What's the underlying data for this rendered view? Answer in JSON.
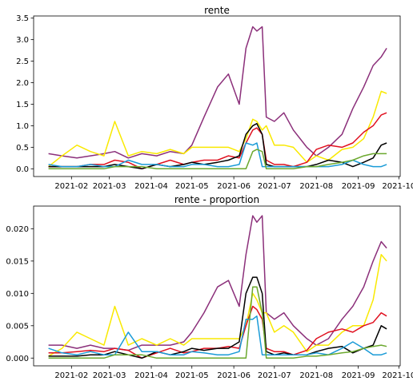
{
  "chart_data": [
    {
      "type": "line",
      "title": "rente",
      "xlabel": "",
      "ylabel": "",
      "x_dates": [
        "2021-01-15",
        "2021-01-25",
        "2021-02-05",
        "2021-02-15",
        "2021-02-25",
        "2021-03-05",
        "2021-03-15",
        "2021-03-25",
        "2021-04-05",
        "2021-04-15",
        "2021-04-25",
        "2021-05-01",
        "2021-05-10",
        "2021-05-20",
        "2021-05-28",
        "2021-06-05",
        "2021-06-10",
        "2021-06-15",
        "2021-06-18",
        "2021-06-22",
        "2021-06-25",
        "2021-07-01",
        "2021-07-08",
        "2021-07-15",
        "2021-07-25",
        "2021-08-01",
        "2021-08-10",
        "2021-08-20",
        "2021-08-28",
        "2021-09-05",
        "2021-09-12",
        "2021-09-18",
        "2021-09-22"
      ],
      "x_ticks": [
        "2021-02",
        "2021-03",
        "2021-04",
        "2021-05",
        "2021-06",
        "2021-07",
        "2021-08",
        "2021-09",
        "2021-10"
      ],
      "xlim": [
        "2021-01-04",
        "2021-10-02"
      ],
      "y_ticks": [
        "0.0",
        "0.5",
        "1.0",
        "1.5",
        "2.0",
        "2.5",
        "3.0",
        "3.5"
      ],
      "ylim": [
        -0.18,
        3.55
      ],
      "series": [
        {
          "color": "#8b2f7a",
          "values": [
            0.35,
            0.3,
            0.25,
            0.3,
            0.35,
            0.4,
            0.25,
            0.35,
            0.3,
            0.4,
            0.35,
            0.55,
            1.2,
            1.9,
            2.2,
            1.5,
            2.8,
            3.3,
            3.2,
            3.3,
            1.2,
            1.1,
            1.3,
            0.9,
            0.5,
            0.3,
            0.5,
            0.8,
            1.4,
            1.9,
            2.4,
            2.6,
            2.8
          ]
        },
        {
          "color": "#f9e900",
          "values": [
            0.05,
            0.3,
            0.55,
            0.4,
            0.3,
            1.1,
            0.3,
            0.4,
            0.35,
            0.45,
            0.35,
            0.5,
            0.5,
            0.5,
            0.5,
            0.4,
            0.7,
            1.15,
            1.1,
            0.9,
            1.0,
            0.55,
            0.55,
            0.5,
            0.15,
            0.3,
            0.2,
            0.45,
            0.5,
            0.7,
            1.2,
            1.8,
            1.75
          ]
        },
        {
          "color": "#e0101f",
          "values": [
            0.05,
            0.05,
            0.05,
            0.1,
            0.1,
            0.2,
            0.15,
            0.0,
            0.1,
            0.2,
            0.1,
            0.15,
            0.2,
            0.2,
            0.3,
            0.25,
            0.6,
            0.9,
            0.95,
            0.8,
            0.2,
            0.1,
            0.1,
            0.05,
            0.15,
            0.45,
            0.55,
            0.5,
            0.6,
            0.85,
            1.0,
            1.25,
            1.3
          ]
        },
        {
          "color": "#000000",
          "values": [
            0.05,
            0.05,
            0.05,
            0.05,
            0.05,
            0.1,
            0.05,
            0.0,
            0.1,
            0.05,
            0.1,
            0.15,
            0.1,
            0.15,
            0.2,
            0.3,
            0.8,
            1.0,
            1.05,
            0.8,
            0.1,
            0.05,
            0.05,
            0.05,
            0.05,
            0.1,
            0.2,
            0.15,
            0.05,
            0.15,
            0.25,
            0.55,
            0.6
          ]
        },
        {
          "color": "#1a9bd7",
          "values": [
            0.1,
            0.05,
            0.05,
            0.1,
            0.05,
            0.05,
            0.2,
            0.1,
            0.1,
            0.05,
            0.05,
            0.1,
            0.1,
            0.05,
            0.05,
            0.1,
            0.6,
            0.55,
            0.6,
            0.05,
            0.05,
            0.05,
            0.05,
            0.05,
            0.05,
            0.05,
            0.05,
            0.1,
            0.2,
            0.1,
            0.05,
            0.05,
            0.1
          ]
        },
        {
          "color": "#6ba82e",
          "values": [
            0.0,
            0.0,
            0.0,
            0.0,
            0.0,
            0.05,
            0.05,
            0.05,
            0.0,
            0.0,
            0.0,
            0.0,
            0.0,
            0.0,
            0.0,
            0.0,
            0.0,
            0.4,
            0.45,
            0.4,
            0.0,
            0.0,
            0.0,
            0.0,
            0.05,
            0.05,
            0.1,
            0.15,
            0.2,
            0.3,
            0.35,
            0.35,
            0.35
          ]
        }
      ]
    },
    {
      "type": "line",
      "title": "rente - proportion",
      "xlabel": "",
      "ylabel": "",
      "x_dates": [
        "2021-01-15",
        "2021-01-25",
        "2021-02-05",
        "2021-02-15",
        "2021-02-25",
        "2021-03-05",
        "2021-03-15",
        "2021-03-25",
        "2021-04-05",
        "2021-04-15",
        "2021-04-25",
        "2021-05-01",
        "2021-05-10",
        "2021-05-20",
        "2021-05-28",
        "2021-06-05",
        "2021-06-10",
        "2021-06-15",
        "2021-06-18",
        "2021-06-22",
        "2021-06-25",
        "2021-07-01",
        "2021-07-08",
        "2021-07-15",
        "2021-07-25",
        "2021-08-01",
        "2021-08-10",
        "2021-08-20",
        "2021-08-28",
        "2021-09-05",
        "2021-09-12",
        "2021-09-18",
        "2021-09-22"
      ],
      "x_ticks": [
        "2021-02",
        "2021-03",
        "2021-04",
        "2021-05",
        "2021-06",
        "2021-07",
        "2021-08",
        "2021-09",
        "2021-10"
      ],
      "xlim": [
        "2021-01-04",
        "2021-10-02"
      ],
      "y_ticks": [
        "0.000",
        "0.005",
        "0.010",
        "0.015",
        "0.020"
      ],
      "ylim": [
        -0.0012,
        0.0235
      ],
      "series": [
        {
          "color": "#8b2f7a",
          "values": [
            0.002,
            0.002,
            0.0015,
            0.002,
            0.0015,
            0.0015,
            0.0012,
            0.002,
            0.002,
            0.002,
            0.0025,
            0.004,
            0.007,
            0.011,
            0.012,
            0.008,
            0.016,
            0.022,
            0.021,
            0.022,
            0.007,
            0.006,
            0.007,
            0.005,
            0.003,
            0.002,
            0.003,
            0.006,
            0.008,
            0.011,
            0.015,
            0.018,
            0.017
          ]
        },
        {
          "color": "#f9e900",
          "values": [
            0.0003,
            0.0015,
            0.004,
            0.003,
            0.002,
            0.008,
            0.002,
            0.003,
            0.002,
            0.003,
            0.002,
            0.003,
            0.003,
            0.003,
            0.003,
            0.003,
            0.005,
            0.01,
            0.009,
            0.007,
            0.007,
            0.004,
            0.005,
            0.004,
            0.001,
            0.002,
            0.002,
            0.004,
            0.005,
            0.005,
            0.009,
            0.016,
            0.015
          ]
        },
        {
          "color": "#e0101f",
          "values": [
            0.0008,
            0.0008,
            0.001,
            0.0012,
            0.001,
            0.0015,
            0.0012,
            0.0,
            0.0008,
            0.0015,
            0.0008,
            0.001,
            0.0015,
            0.0015,
            0.0018,
            0.0015,
            0.005,
            0.008,
            0.0075,
            0.006,
            0.0015,
            0.001,
            0.001,
            0.0005,
            0.0012,
            0.003,
            0.004,
            0.0045,
            0.004,
            0.005,
            0.0055,
            0.007,
            0.0065
          ]
        },
        {
          "color": "#000000",
          "values": [
            0.0003,
            0.0003,
            0.0003,
            0.0005,
            0.0005,
            0.001,
            0.0005,
            0.0,
            0.001,
            0.0005,
            0.001,
            0.0015,
            0.0012,
            0.0015,
            0.0015,
            0.0025,
            0.01,
            0.0125,
            0.0125,
            0.01,
            0.001,
            0.0005,
            0.0008,
            0.0005,
            0.0005,
            0.001,
            0.0015,
            0.0018,
            0.0008,
            0.0015,
            0.002,
            0.005,
            0.0045
          ]
        },
        {
          "color": "#1a9bd7",
          "values": [
            0.0015,
            0.0008,
            0.0005,
            0.001,
            0.0005,
            0.0005,
            0.004,
            0.001,
            0.001,
            0.0005,
            0.0005,
            0.001,
            0.0008,
            0.0005,
            0.0005,
            0.001,
            0.006,
            0.006,
            0.0065,
            0.0005,
            0.0005,
            0.0005,
            0.0005,
            0.0005,
            0.0005,
            0.0008,
            0.0005,
            0.0015,
            0.0025,
            0.0015,
            0.0005,
            0.0005,
            0.0008
          ]
        },
        {
          "color": "#6ba82e",
          "values": [
            0.0,
            0.0,
            0.0,
            0.0,
            0.0,
            0.0005,
            0.0005,
            0.0005,
            0.0,
            0.0,
            0.0,
            0.0,
            0.0,
            0.0,
            0.0,
            0.0,
            0.0,
            0.011,
            0.011,
            0.007,
            0.0,
            0.0,
            0.0,
            0.0,
            0.0003,
            0.0003,
            0.0005,
            0.0008,
            0.001,
            0.0015,
            0.0018,
            0.002,
            0.0018
          ]
        }
      ]
    }
  ]
}
